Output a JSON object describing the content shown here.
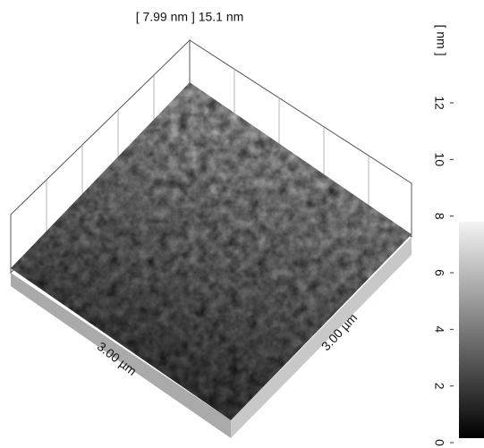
{
  "title": "[ 7.99 nm ] 15.1 nm",
  "x_label": "3.00 µm",
  "y_label": "3.00 µm",
  "colorbar": {
    "unit": "[ nm ]",
    "ticks": [
      0,
      2,
      4,
      6,
      8,
      10,
      12
    ]
  }
}
